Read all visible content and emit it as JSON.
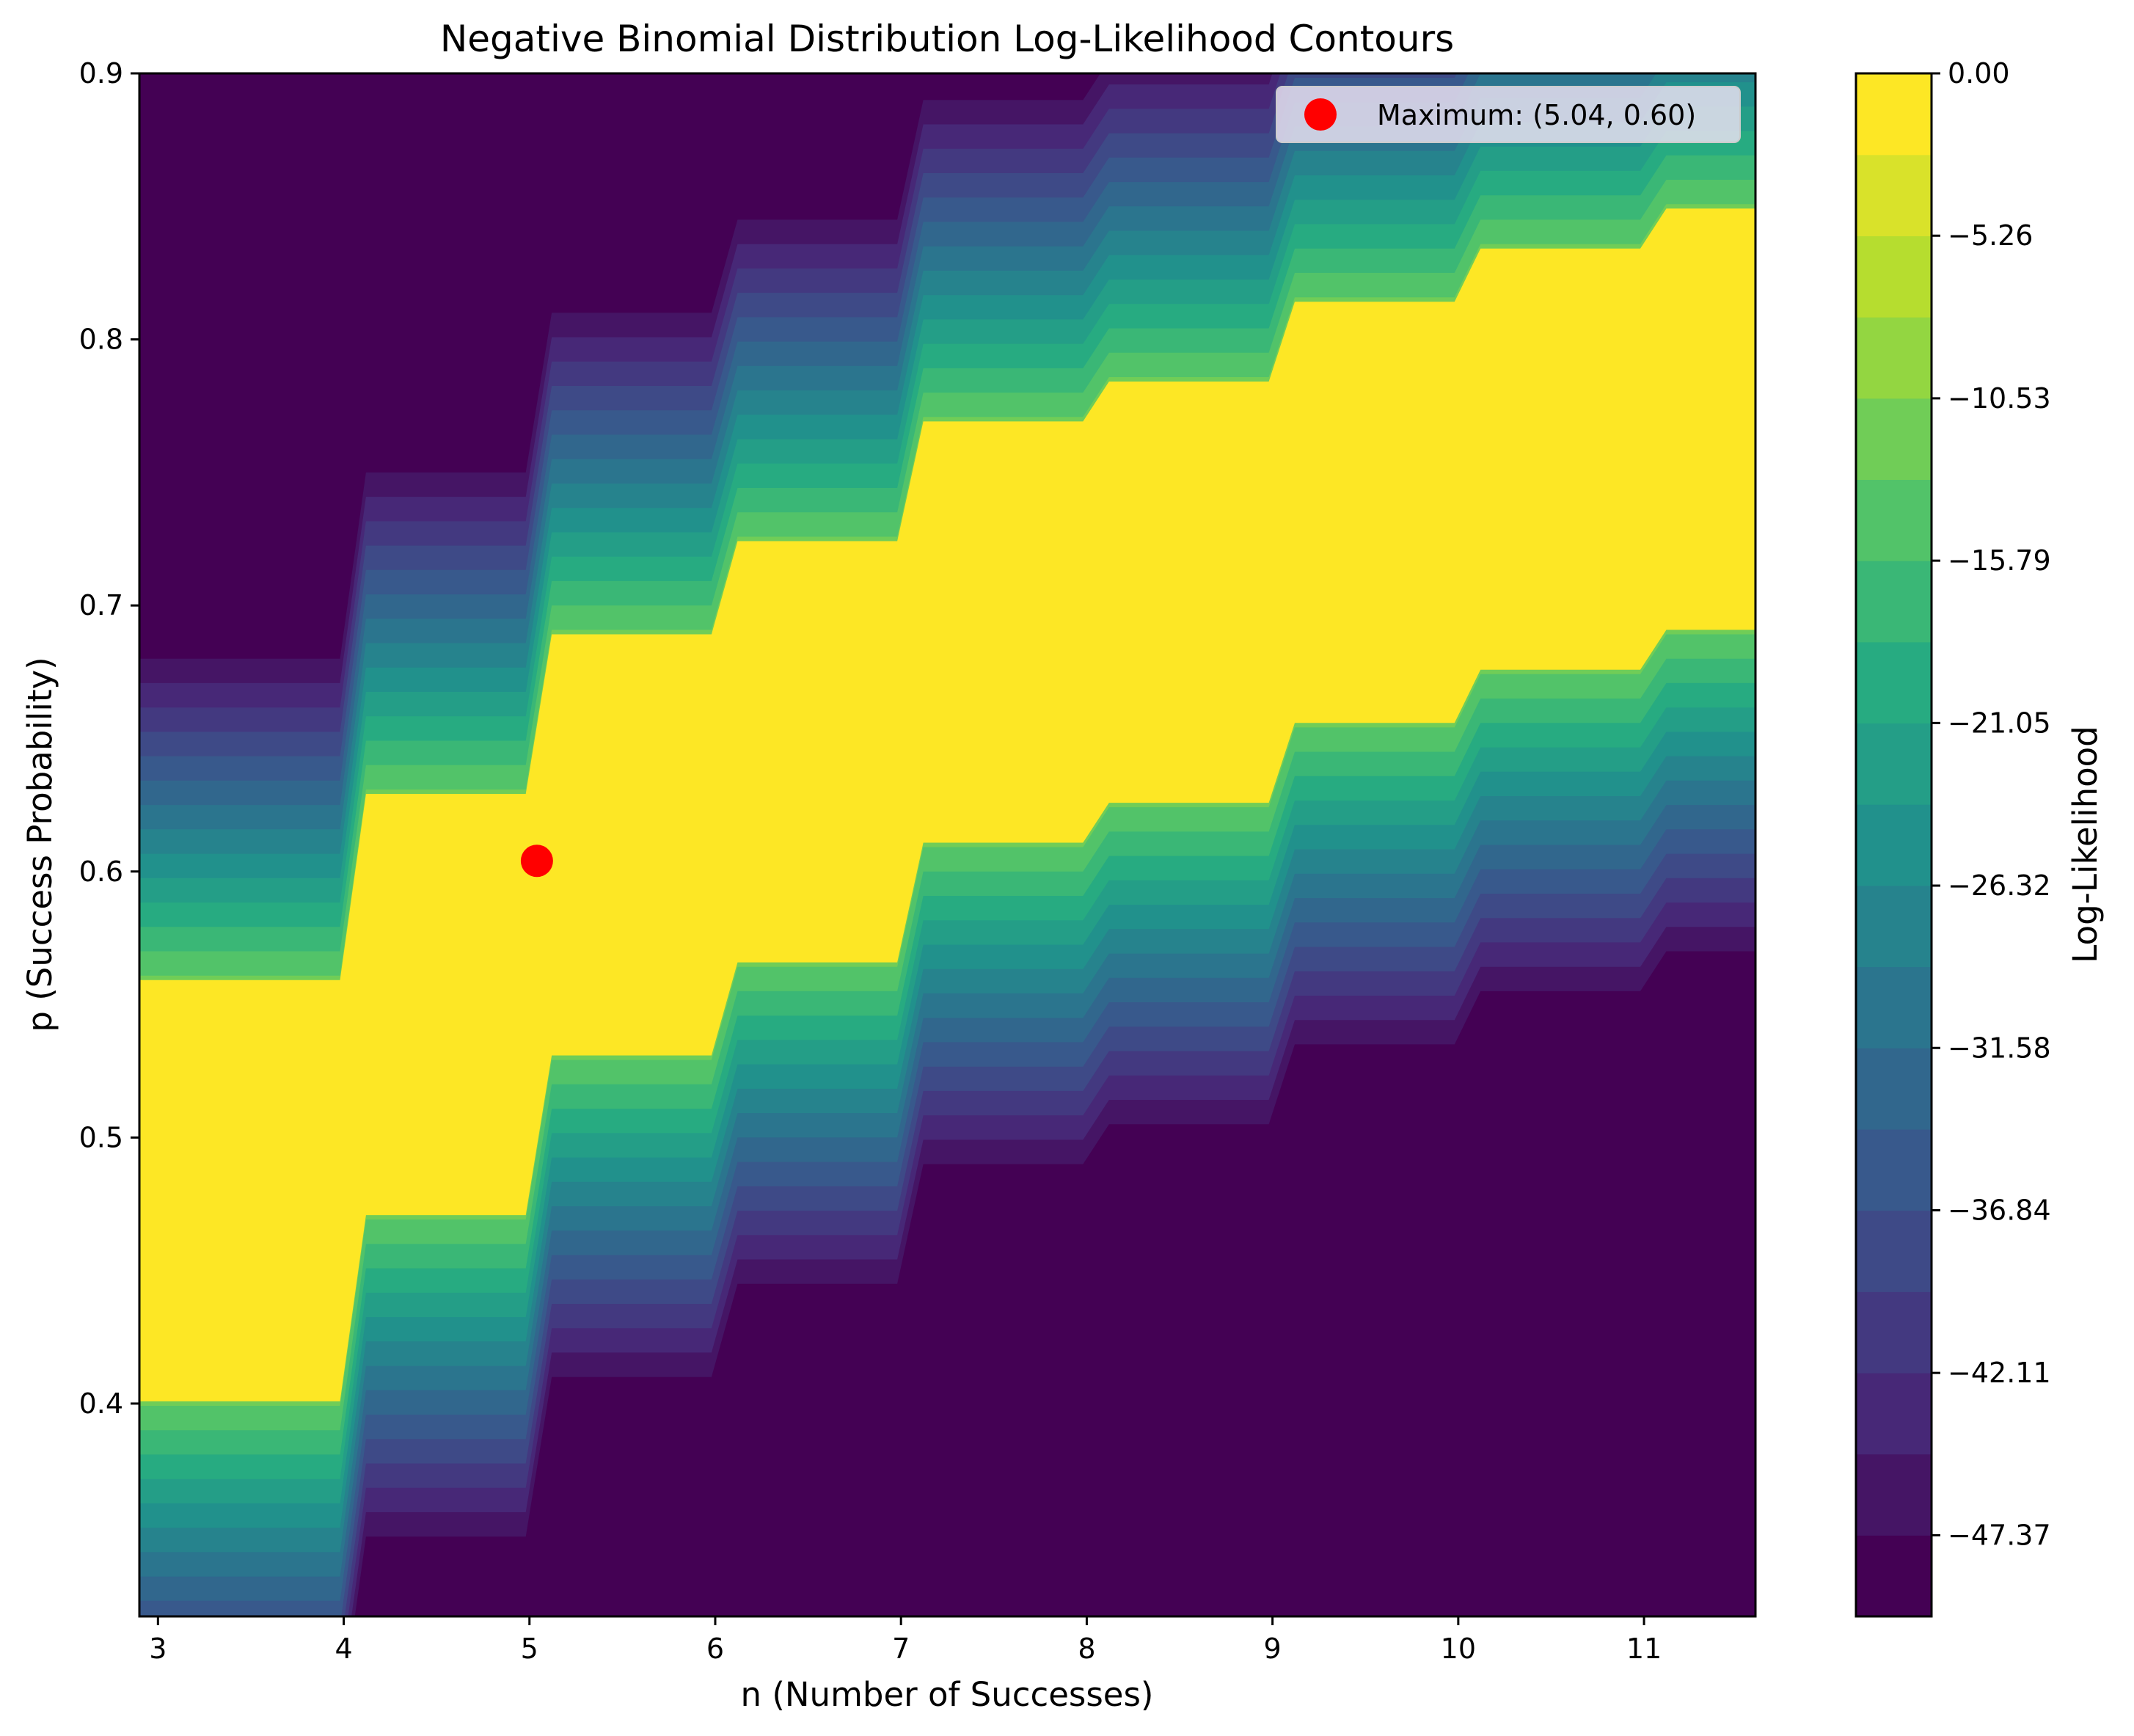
{
  "chart_data": {
    "type": "contour",
    "title": "Negative Binomial Distribution Log-Likelihood Contours",
    "xlabel": "n (Number of Successes)",
    "ylabel": "p (Success Probability)",
    "colorbar_label": "Log-Likelihood",
    "colormap": "viridis",
    "xlim": [
      2.9,
      11.6
    ],
    "ylim": [
      0.32,
      0.9
    ],
    "x_ticks": [
      "3",
      "4",
      "5",
      "6",
      "7",
      "8",
      "9",
      "10",
      "11"
    ],
    "y_ticks": [
      "0.4",
      "0.5",
      "0.6",
      "0.7",
      "0.8",
      "0.9"
    ],
    "colorbar_ticks": [
      "0.00",
      "−5.26",
      "−10.53",
      "−15.79",
      "−21.05",
      "−26.32",
      "−31.58",
      "−36.84",
      "−42.11",
      "−47.37"
    ],
    "colorbar_range": [
      -50,
      0
    ],
    "levels": 19,
    "ridge": [
      {
        "n": 3,
        "p_center": 0.48
      },
      {
        "n": 4,
        "p_center": 0.55
      },
      {
        "n": 5,
        "p_center": 0.61
      },
      {
        "n": 6,
        "p_center": 0.645
      },
      {
        "n": 7,
        "p_center": 0.69
      },
      {
        "n": 8,
        "p_center": 0.705
      },
      {
        "n": 9,
        "p_center": 0.735
      },
      {
        "n": 10,
        "p_center": 0.755
      },
      {
        "n": 11,
        "p_center": 0.77
      }
    ],
    "maximum": {
      "n": 5.04,
      "p": 0.604,
      "marker_color": "#ff0000"
    },
    "legend": {
      "label": "Maximum: (5.04, 0.60)",
      "position": "upper right"
    }
  }
}
